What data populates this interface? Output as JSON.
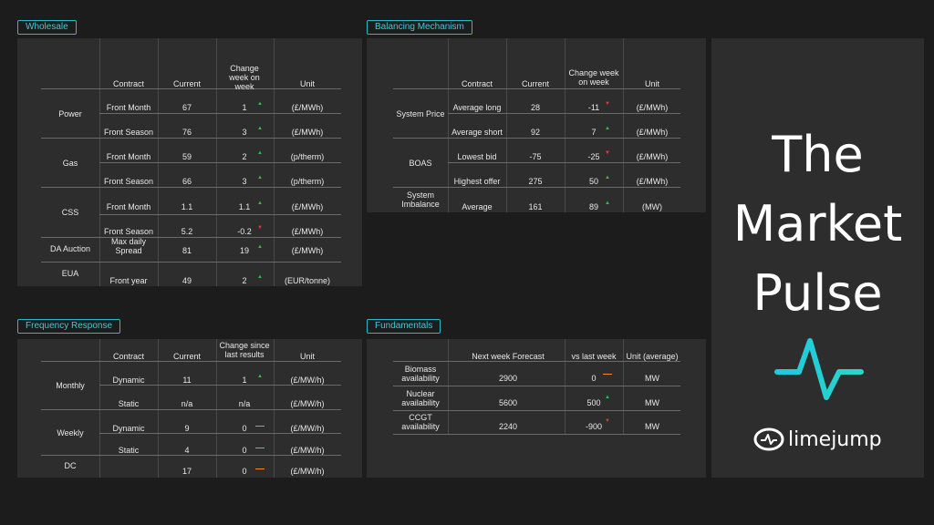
{
  "wholesale": {
    "tag": "Wholesale",
    "headers": {
      "contract": "Contract",
      "current": "Current",
      "change": "Change week on week",
      "unit": "Unit"
    },
    "groups": [
      "Power",
      "Gas",
      "CSS",
      "DA Auction",
      "EUA"
    ],
    "rows": [
      {
        "contract": "Front Month",
        "current": "67",
        "change": "1",
        "dir": "up",
        "unit": "(£/MWh)"
      },
      {
        "contract": "Front Season",
        "current": "76",
        "change": "3",
        "dir": "up",
        "unit": "(£/MWh)"
      },
      {
        "contract": "Front Month",
        "current": "59",
        "change": "2",
        "dir": "up",
        "unit": "(p/therm)"
      },
      {
        "contract": "Front Season",
        "current": "66",
        "change": "3",
        "dir": "up",
        "unit": "(p/therm)"
      },
      {
        "contract": "Front Month",
        "current": "1.1",
        "change": "1.1",
        "dir": "up",
        "unit": "(£/MWh)"
      },
      {
        "contract": "Front Season",
        "current": "5.2",
        "change": "-0.2",
        "dir": "down",
        "unit": "(£/MWh)"
      },
      {
        "contract": "Max daily Spread",
        "current": "81",
        "change": "19",
        "dir": "up",
        "unit": "(£/MWh)"
      },
      {
        "contract": "Front year",
        "current": "49",
        "change": "2",
        "dir": "up",
        "unit": "(EUR/tonne)"
      }
    ]
  },
  "balancing": {
    "tag": "Balancing Mechanism",
    "headers": {
      "contract": "Contract",
      "current": "Current",
      "change": "Change week on week",
      "unit": "Unit"
    },
    "groups": [
      "System Price",
      "BOAS",
      "System Imbalance"
    ],
    "rows": [
      {
        "contract": "Average long",
        "current": "28",
        "change": "-11",
        "dir": "down",
        "unit": "(£/MWh)"
      },
      {
        "contract": "Average short",
        "current": "92",
        "change": "7",
        "dir": "up",
        "unit": "(£/MWh)"
      },
      {
        "contract": "Lowest bid",
        "current": "-75",
        "change": "-25",
        "dir": "down",
        "unit": "(£/MWh)"
      },
      {
        "contract": "Highest offer",
        "current": "275",
        "change": "50",
        "dir": "up",
        "unit": "(£/MWh)"
      },
      {
        "contract": "Average",
        "current": "161",
        "change": "89",
        "dir": "up",
        "unit": "(MW)"
      }
    ]
  },
  "frequency": {
    "tag": "Frequency Response",
    "headers": {
      "contract": "Contract",
      "current": "Current",
      "change": "Change since last results",
      "unit": "Unit"
    },
    "groups": [
      "Monthly",
      "Weekly",
      "DC"
    ],
    "rows": [
      {
        "contract": "Dynamic",
        "current": "11",
        "change": "1",
        "dir": "up",
        "unit": "(£/MW/h)"
      },
      {
        "contract": "Static",
        "current": "n/a",
        "change": "n/a",
        "dir": "",
        "unit": "(£/MW/h)"
      },
      {
        "contract": "Dynamic",
        "current": "9",
        "change": "0",
        "dir": "flat",
        "unit": "(£/MW/h)"
      },
      {
        "contract": "Static",
        "current": "4",
        "change": "0",
        "dir": "flat",
        "unit": "(£/MW/h)"
      },
      {
        "contract": "",
        "current": "17",
        "change": "0",
        "dir": "flat",
        "unit": "(£/MW/h)"
      }
    ]
  },
  "fundamentals": {
    "tag": "Fundamentals",
    "headers": {
      "forecast": "Next week Forecast",
      "vs": "vs last week",
      "unit": "Unit (average)"
    },
    "rows": [
      {
        "name": "Biomass availability",
        "forecast": "2900",
        "vs": "0",
        "dir": "flat",
        "unit": "MW"
      },
      {
        "name": "Nuclear availability",
        "forecast": "5600",
        "vs": "500",
        "dir": "up",
        "unit": "MW"
      },
      {
        "name": "CCGT availability",
        "forecast": "2240",
        "vs": "-900",
        "dir": "down",
        "unit": "MW"
      }
    ]
  },
  "brand": {
    "title_line1": "The",
    "title_line2": "Market",
    "title_line3": "Pulse",
    "logo_text": "limejump",
    "pulse_color": "#1fc8e0"
  }
}
